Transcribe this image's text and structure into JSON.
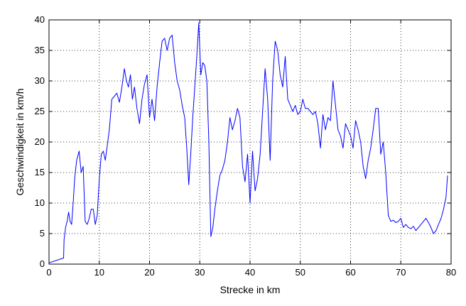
{
  "chart_data": {
    "type": "line",
    "xlabel": "Strecke in km",
    "ylabel": "Geschwindigkeit in km/h",
    "xlim": [
      0,
      80
    ],
    "ylim": [
      0,
      40
    ],
    "xticks": [
      0,
      10,
      20,
      30,
      40,
      50,
      60,
      70,
      80
    ],
    "yticks": [
      0,
      5,
      10,
      15,
      20,
      25,
      30,
      35,
      40
    ],
    "grid": true,
    "series": [
      {
        "color": "#0000ff",
        "x": [
          0,
          2.9,
          3.0,
          3.3,
          3.6,
          3.9,
          4.2,
          4.5,
          4.8,
          5.1,
          5.5,
          6.0,
          6.4,
          6.8,
          7.2,
          7.6,
          8.0,
          8.4,
          8.8,
          9.2,
          9.6,
          10.0,
          10.4,
          10.8,
          11.2,
          11.6,
          12.0,
          12.5,
          13.0,
          13.5,
          14.0,
          14.5,
          15.0,
          15.4,
          15.8,
          16.2,
          16.6,
          17.0,
          17.5,
          18.0,
          18.5,
          19.0,
          19.5,
          20.0,
          20.5,
          21.0,
          21.5,
          22.0,
          22.5,
          23.0,
          23.5,
          24.0,
          24.5,
          25.0,
          25.5,
          26.0,
          26.5,
          27.0,
          27.4,
          27.8,
          28.2,
          28.6,
          29.0,
          29.4,
          29.8,
          30.2,
          30.6,
          31.0,
          31.4,
          31.8,
          32.2,
          32.6,
          33.0,
          33.5,
          34.0,
          34.5,
          35.0,
          35.5,
          36.0,
          36.5,
          37.0,
          37.5,
          38.0,
          38.5,
          39.0,
          39.5,
          40.0,
          40.5,
          41.0,
          41.5,
          42.0,
          42.5,
          43.0,
          43.5,
          44.0,
          44.5,
          45.0,
          45.5,
          46.0,
          46.5,
          47.0,
          47.5,
          48.0,
          48.5,
          49.0,
          49.5,
          50.0,
          50.5,
          51.0,
          51.5,
          52.0,
          52.5,
          53.0,
          53.5,
          54.0,
          54.5,
          55.0,
          55.5,
          56.0,
          56.5,
          57.0,
          57.5,
          58.0,
          58.5,
          59.0,
          59.5,
          60.0,
          60.5,
          61.0,
          61.5,
          62.0,
          62.5,
          63.0,
          63.5,
          64.0,
          64.5,
          65.0,
          65.5,
          66.0,
          66.5,
          67.0,
          67.5,
          68.0,
          68.5,
          69.0,
          69.5,
          70.0,
          70.5,
          71.0,
          71.5,
          72.0,
          72.5,
          73.0,
          73.5,
          74.0,
          74.5,
          75.0,
          75.5,
          76.0,
          76.5,
          77.0,
          77.5,
          78.0,
          78.5,
          79.0,
          79.3
        ],
        "y": [
          0.2,
          1.0,
          4.0,
          6.0,
          7.0,
          8.5,
          7.0,
          6.5,
          10.0,
          14.0,
          17.0,
          18.5,
          15.0,
          16.0,
          7.0,
          6.5,
          7.5,
          9.0,
          9.0,
          6.5,
          8.0,
          14.0,
          18.0,
          18.5,
          17.0,
          19.5,
          22.0,
          27.0,
          27.5,
          28.0,
          26.5,
          29.0,
          32.0,
          30.0,
          29.0,
          31.0,
          27.0,
          29.0,
          25.5,
          23.0,
          27.0,
          29.5,
          31.0,
          24.0,
          27.0,
          23.5,
          29.0,
          33.0,
          36.5,
          37.0,
          35.0,
          37.0,
          37.5,
          33.0,
          30.0,
          28.5,
          26.0,
          24.0,
          19.0,
          13.0,
          18.0,
          24.0,
          29.0,
          34.0,
          39.5,
          31.0,
          33.0,
          32.5,
          30.0,
          20.0,
          4.5,
          6.0,
          9.0,
          12.0,
          14.5,
          15.5,
          17.0,
          20.0,
          24.0,
          22.0,
          23.5,
          25.5,
          24.0,
          16.0,
          13.5,
          18.0,
          10.0,
          18.5,
          12.0,
          14.0,
          18.0,
          25.0,
          32.0,
          27.0,
          17.0,
          30.0,
          36.5,
          35.0,
          31.0,
          29.0,
          34.0,
          27.0,
          26.0,
          25.0,
          26.0,
          24.5,
          25.0,
          27.0,
          25.5,
          25.5,
          25.0,
          24.5,
          25.0,
          23.0,
          19.0,
          24.5,
          22.0,
          24.0,
          23.5,
          30.0,
          26.0,
          22.0,
          21.0,
          19.0,
          23.0,
          22.0,
          21.0,
          19.0,
          23.5,
          22.0,
          20.0,
          16.0,
          14.0,
          17.0,
          19.0,
          22.0,
          25.5,
          25.5,
          18.0,
          20.0,
          15.0,
          8.0,
          7.0,
          7.2,
          6.8,
          7.0,
          7.5,
          6.0,
          6.5,
          6.0,
          5.8,
          6.2,
          5.5,
          6.0,
          6.5,
          7.0,
          7.5,
          6.8,
          6.0,
          5.0,
          5.5,
          6.5,
          7.5,
          9.0,
          11.0,
          14.5
        ]
      }
    ]
  }
}
